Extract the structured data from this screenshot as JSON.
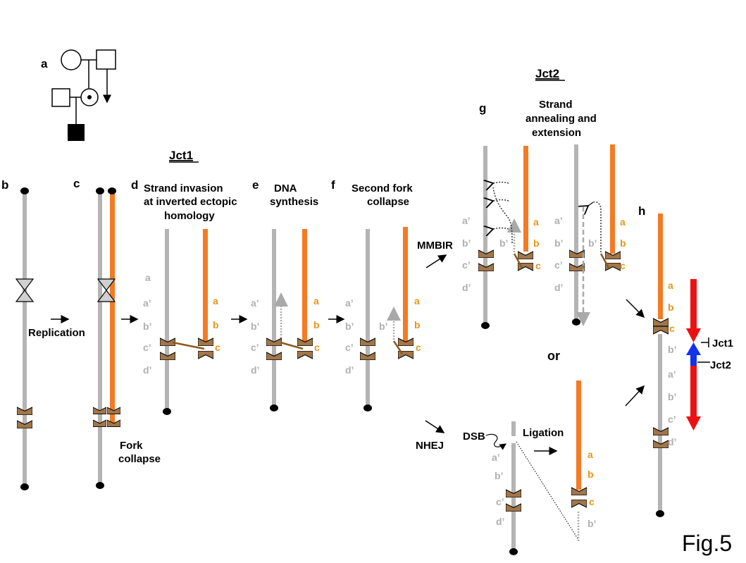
{
  "colors": {
    "grey_strand": "#b4b4b4",
    "orange_strand": "#f47a24",
    "lcr_brown": "#a0764a",
    "invasion_line": "#8b5a1e",
    "label_grey": "#b0b0b0",
    "label_orange": "#e8951a",
    "arrow_red": "#ee1111",
    "arrow_blue": "#1133ee"
  },
  "panels": {
    "a": "a",
    "b": "b",
    "c": "c",
    "d": "d",
    "e": "e",
    "f": "f",
    "g": "g",
    "h": "h"
  },
  "headings": {
    "jct1": "Jct1",
    "jct2": "Jct2"
  },
  "steps": {
    "replication": "Replication",
    "fork_collapse_1": "Fork",
    "fork_collapse_2": "collapse",
    "d_line1": "Strand invasion",
    "d_line2": "at inverted ectopic",
    "d_line3": "homology",
    "e_line1": "DNA",
    "e_line2": "synthesis",
    "f_line1": "Second fork",
    "f_line2": "collapse",
    "g_line1": "Strand",
    "g_line2": "annealing and",
    "g_line3": "extension",
    "mmbir": "MMBIR",
    "nhej": "NHEJ",
    "dsb": "DSB",
    "ligation": "Ligation",
    "or": "or"
  },
  "labels": {
    "a": "a",
    "a_prime": "a’",
    "b": "b",
    "b_prime": "b’",
    "c": "c",
    "c_prime": "c’",
    "d_prime": "d’"
  },
  "junctions": {
    "jct1": "Jct1",
    "jct2": "Jct2"
  },
  "figure_label": "Fig.5"
}
